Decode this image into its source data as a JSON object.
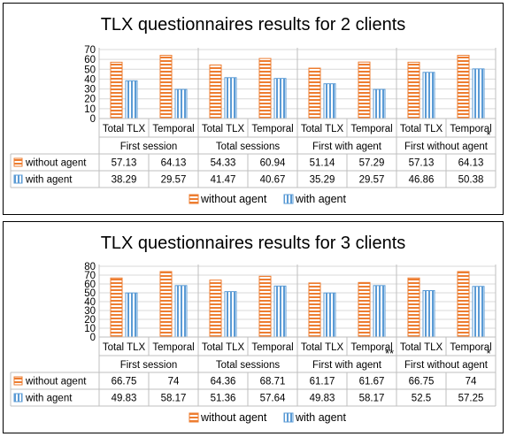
{
  "colors": {
    "without_agent": "#ED7D31",
    "with_agent": "#5B9BD5",
    "grid": "#D9D9D9",
    "border": "#BFBFBF"
  },
  "legend_position": "bottom",
  "chart_data": [
    {
      "type": "bar",
      "title": "TLX  questionnaires results for 2 clients",
      "ylim": [
        0,
        70
      ],
      "yticks": [
        "0",
        "10",
        "20",
        "30",
        "40",
        "50",
        "60",
        "70"
      ],
      "grid": true,
      "subcategories": [
        "Total TLX",
        "Temporal",
        "Total TLX",
        "Temporal",
        "Total TLX",
        "Temporal",
        "Total TLX",
        "Temporal"
      ],
      "groups": [
        "First session",
        "Total sessions",
        "First with agent",
        "First without agent"
      ],
      "group_marks": [
        "",
        "",
        "",
        ""
      ],
      "temporal_marks": [
        "",
        "",
        "",
        "*"
      ],
      "series": [
        {
          "name": "without agent",
          "values": [
            57.13,
            64.13,
            54.33,
            60.94,
            51.14,
            57.29,
            57.13,
            64.13
          ],
          "labels": [
            "57.13",
            "64.13",
            "54.33",
            "60.94",
            "51.14",
            "57.29",
            "57.13",
            "64.13"
          ]
        },
        {
          "name": "with agent",
          "values": [
            38.29,
            29.57,
            41.47,
            40.67,
            35.29,
            29.57,
            46.86,
            50.38
          ],
          "labels": [
            "38.29",
            "29.57",
            "41.47",
            "40.67",
            "35.29",
            "29.57",
            "46.86",
            "50.38"
          ]
        }
      ]
    },
    {
      "type": "bar",
      "title": "TLX  questionnaires results for 3 clients",
      "ylim": [
        0,
        80
      ],
      "yticks": [
        "0",
        "10",
        "20",
        "30",
        "40",
        "50",
        "60",
        "70",
        "80"
      ],
      "grid": true,
      "subcategories": [
        "Total TLX",
        "Temporal",
        "Total TLX",
        "Temporal",
        "Total TLX",
        "Temporal",
        "Total TLX",
        "Temporal"
      ],
      "groups": [
        "First session",
        "Total sessions",
        "First with agent",
        "First without agent"
      ],
      "group_marks": [
        "",
        "",
        "",
        ""
      ],
      "temporal_marks": [
        "",
        "",
        "**",
        "*"
      ],
      "series": [
        {
          "name": "without agent",
          "values": [
            66.75,
            74,
            64.36,
            68.71,
            61.17,
            61.67,
            66.75,
            74
          ],
          "labels": [
            "66.75",
            "74",
            "64.36",
            "68.71",
            "61.17",
            "61.67",
            "66.75",
            "74"
          ]
        },
        {
          "name": "with agent",
          "values": [
            49.83,
            58.17,
            51.36,
            57.64,
            49.83,
            58.17,
            52.5,
            57.25
          ],
          "labels": [
            "49.83",
            "58.17",
            "51.36",
            "57.64",
            "49.83",
            "58.17",
            "52.5",
            "57.25"
          ]
        }
      ]
    }
  ]
}
